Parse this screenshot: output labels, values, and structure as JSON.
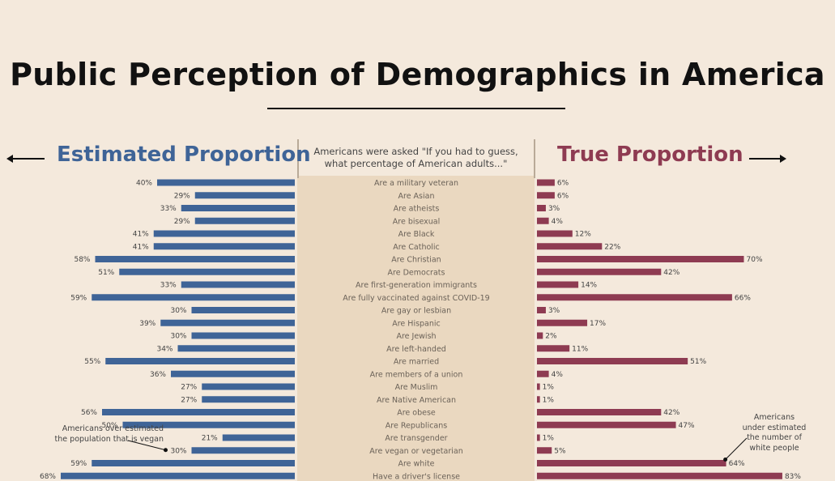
{
  "title": "Public Perception of Demographics in America",
  "question": "Americans were asked \"If you had to guess, what percentage of American adults...\"",
  "left_heading": "Estimated Proportion",
  "right_heading": "True Proportion",
  "annotations": {
    "left": "Americans over estimated the population that is vegan",
    "right": "Americans under estimated the number of white people"
  },
  "colors": {
    "background": "#f4e9dc",
    "center_panel": "#ead8c0",
    "estimated": "#3f6497",
    "true": "#8e3b52"
  },
  "chart_data": {
    "type": "bar",
    "categories": [
      "Are a military veteran",
      "Are Asian",
      "Are atheists",
      "Are bisexual",
      "Are Black",
      "Are Catholic",
      "Are Christian",
      "Are Democrats",
      "Are first-generation immigrants",
      "Are fully vaccinated against COVID-19",
      "Are gay or lesbian",
      "Are Hispanic",
      "Are Jewish",
      "Are left-handed",
      "Are married",
      "Are members of a union",
      "Are Muslim",
      "Are Native American",
      "Are obese",
      "Are Republicans",
      "Are transgender",
      "Are vegan or vegetarian",
      "Are white",
      "Have a driver's license"
    ],
    "series": [
      {
        "name": "Estimated Proportion",
        "values": [
          40,
          29,
          33,
          29,
          41,
          41,
          58,
          51,
          33,
          59,
          30,
          39,
          30,
          34,
          55,
          36,
          27,
          27,
          56,
          50,
          21,
          30,
          59,
          68
        ]
      },
      {
        "name": "True Proportion",
        "values": [
          6,
          6,
          3,
          4,
          12,
          22,
          70,
          42,
          14,
          66,
          3,
          17,
          2,
          11,
          51,
          4,
          1,
          1,
          42,
          47,
          1,
          5,
          64,
          83
        ]
      }
    ],
    "unit": "%"
  }
}
